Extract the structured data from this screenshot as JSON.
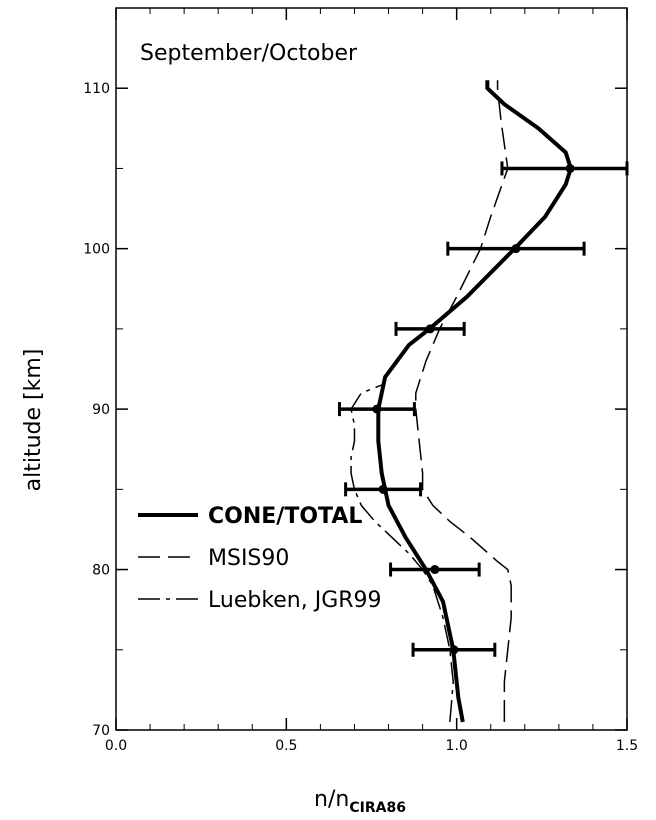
{
  "chart_data": {
    "type": "line",
    "title": "September/October",
    "y_label": "altitude [km]",
    "x_label": "n/n",
    "x_label_sub": "CIRA86",
    "xlim": [
      0,
      1.5
    ],
    "ylim": [
      70,
      115
    ],
    "xticks": [
      {
        "value": 0,
        "label": "0.0"
      },
      {
        "value": 0.5,
        "label": "0.5"
      },
      {
        "value": 1,
        "label": "1.0"
      },
      {
        "value": 1.5,
        "label": "1.5"
      }
    ],
    "xminorticks": [
      0.1,
      0.2,
      0.3,
      0.4,
      0.6,
      0.7,
      0.8,
      0.9,
      1.1,
      1.2,
      1.3,
      1.4
    ],
    "yticks": [
      70,
      80,
      90,
      100,
      110
    ],
    "yminorticks": [
      75,
      85,
      95,
      105
    ],
    "legend": "lower left",
    "series": [
      {
        "name": "CONE/TOTAL",
        "color": "#000",
        "style": "solid",
        "y": [
          70.5,
          72,
          75,
          78,
          80,
          82,
          84,
          86,
          88,
          90,
          92,
          94,
          95,
          97,
          100,
          102,
          104,
          105,
          106,
          107.5,
          109,
          110,
          110.5
        ],
        "x": [
          1.018,
          1.005,
          0.99,
          0.96,
          0.91,
          0.85,
          0.8,
          0.78,
          0.77,
          0.77,
          0.79,
          0.86,
          0.92,
          1.03,
          1.17,
          1.26,
          1.32,
          1.335,
          1.32,
          1.24,
          1.14,
          1.09,
          1.09
        ]
      },
      {
        "name": "MSIS90",
        "color": "#000",
        "style": "dashed",
        "y": [
          70.5,
          73,
          75,
          77,
          79,
          80,
          80.5,
          82,
          83,
          84,
          85,
          86,
          88,
          90,
          91,
          93,
          95,
          97,
          100,
          102,
          105,
          108,
          110,
          110.5
        ],
        "x": [
          1.14,
          1.14,
          1.15,
          1.16,
          1.16,
          1.15,
          1.12,
          1.04,
          0.98,
          0.93,
          0.9,
          0.9,
          0.89,
          0.88,
          0.88,
          0.91,
          0.95,
          1.0,
          1.07,
          1.1,
          1.15,
          1.13,
          1.12,
          1.12
        ]
      },
      {
        "name": "Luebken, JGR99",
        "color": "#000",
        "style": "dashdot",
        "y": [
          70.5,
          73,
          75,
          77,
          79,
          80,
          81,
          82,
          83,
          84,
          85,
          86,
          87,
          88,
          89,
          90,
          91,
          91.5
        ],
        "x": [
          0.98,
          0.99,
          0.98,
          0.96,
          0.93,
          0.9,
          0.86,
          0.81,
          0.76,
          0.72,
          0.7,
          0.69,
          0.69,
          0.7,
          0.7,
          0.69,
          0.72,
          0.78
        ]
      }
    ],
    "points": {
      "y": [
        75,
        80,
        85,
        90,
        95,
        100,
        105
      ],
      "x": [
        0.992,
        0.936,
        0.784,
        0.766,
        0.922,
        1.174,
        1.333
      ],
      "err": [
        0.12,
        0.13,
        0.11,
        0.11,
        0.1,
        0.2,
        0.2
      ]
    }
  }
}
